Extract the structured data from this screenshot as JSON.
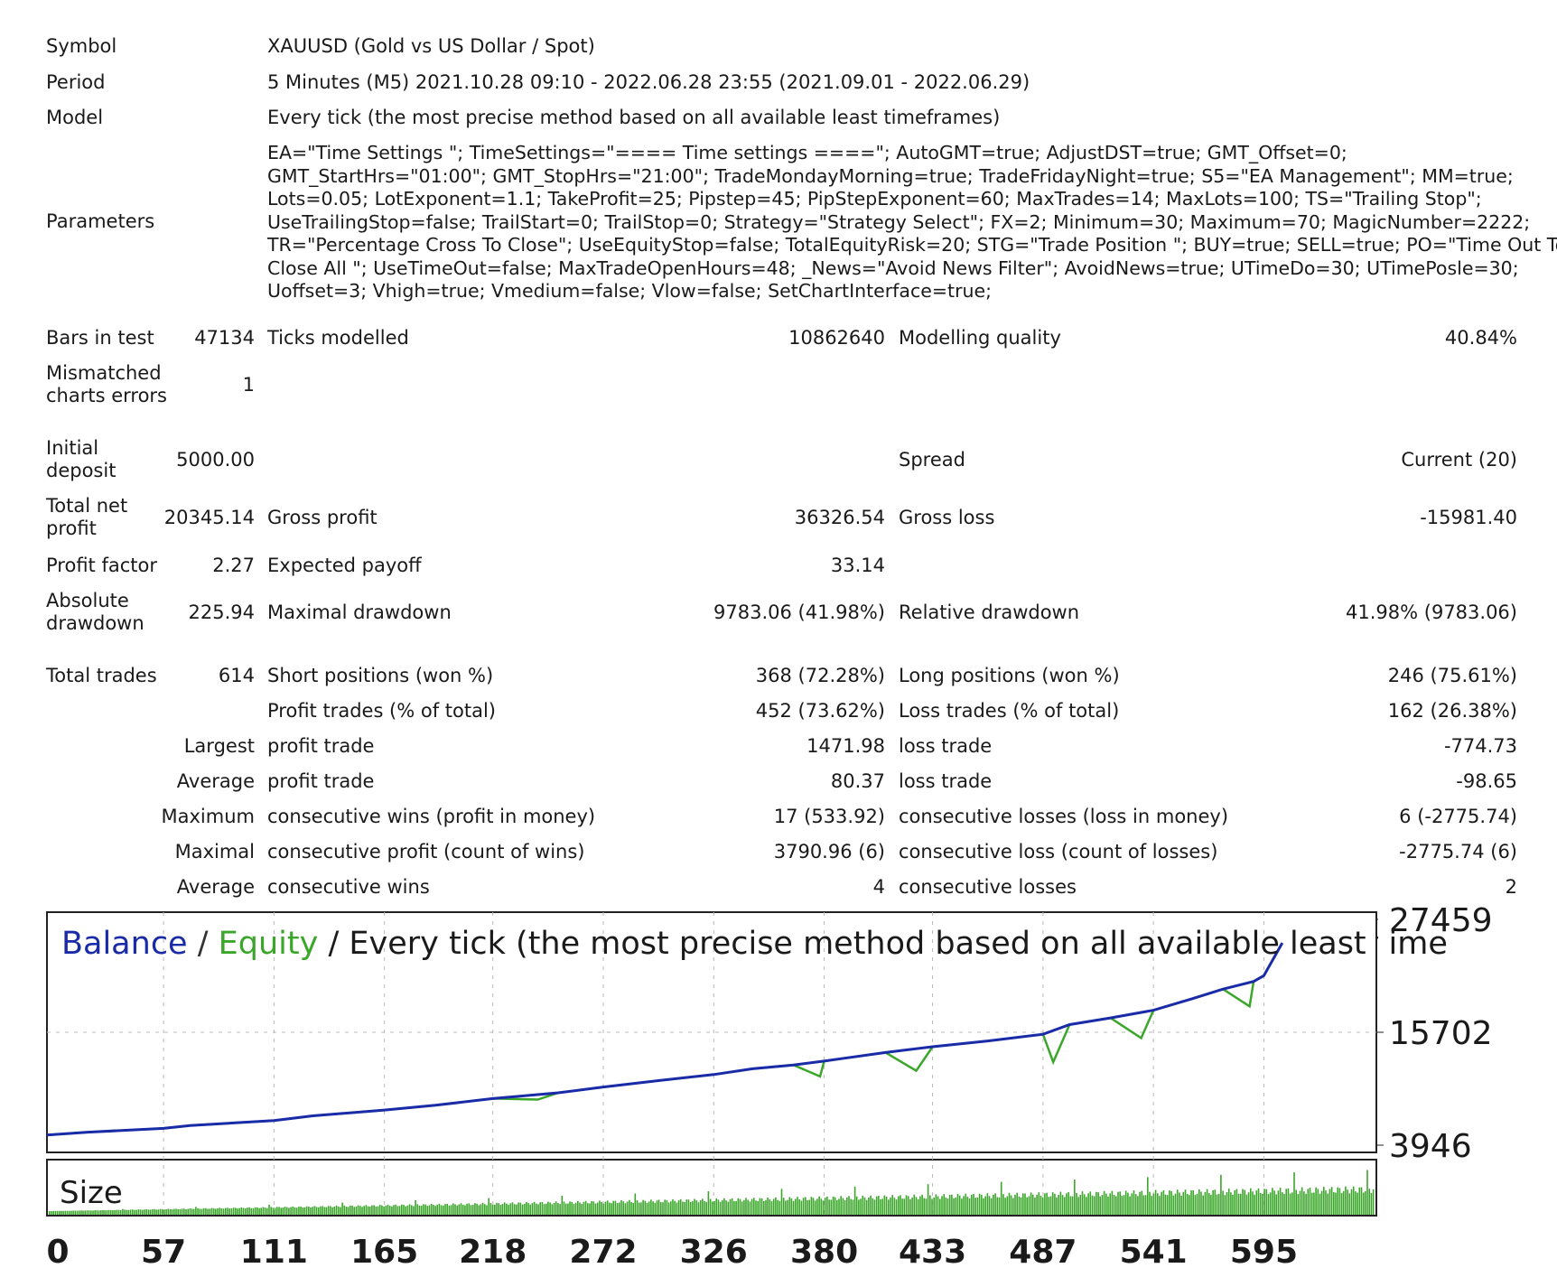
{
  "report": {
    "symbol_label": "Symbol",
    "symbol_value": "XAUUSD (Gold vs US Dollar / Spot)",
    "period_label": "Period",
    "period_value": "5 Minutes (M5) 2021.10.28 09:10 - 2022.06.28 23:55 (2021.09.01 - 2022.06.29)",
    "model_label": "Model",
    "model_value": "Every tick (the most precise method based on all available least timeframes)",
    "parameters_label": "Parameters",
    "parameters_value": "EA=\"Time Settings \"; TimeSettings=\"==== Time settings ====\"; AutoGMT=true; AdjustDST=true; GMT_Offset=0; GMT_StartHrs=\"01:00\"; GMT_StopHrs=\"21:00\"; TradeMondayMorning=true; TradeFridayNight=true; S5=\"EA Management\"; MM=true; Lots=0.05; LotExponent=1.1; TakeProfit=25; Pipstep=45; PipStepExponent=60; MaxTrades=14; MaxLots=100; TS=\"Trailing Stop\"; UseTrailingStop=false; TrailStart=0; TrailStop=0; Strategy=\"Strategy Select\"; FX=2; Minimum=30; Maximum=70; MagicNumber=2222; TR=\"Percentage Cross To Close\"; UseEquityStop=false; TotalEquityRisk=20; STG=\"Trade Position \"; BUY=true; SELL=true; PO=\"Time Out To Close All \"; UseTimeOut=false; MaxTradeOpenHours=48; _News=\"Avoid News Filter\"; AvoidNews=true; UTimeDo=30; UTimePosle=30; Uoffset=3; Vhigh=true; Vmedium=false; Vlow=false; SetChartInterface=true;",
    "bars_label": "Bars in test",
    "bars_value": "47134",
    "ticks_label": "Ticks modelled",
    "ticks_value": "10862640",
    "quality_label": "Modelling quality",
    "quality_value": "40.84%",
    "mismatch_label": "Mismatched charts errors",
    "mismatch_value": "1",
    "deposit_label": "Initial deposit",
    "deposit_value": "5000.00",
    "spread_label": "Spread",
    "spread_value": "Current (20)",
    "net_label": "Total net profit",
    "net_value": "20345.14",
    "gross_profit_label": "Gross profit",
    "gross_profit_value": "36326.54",
    "gross_loss_label": "Gross loss",
    "gross_loss_value": "-15981.40",
    "pf_label": "Profit factor",
    "pf_value": "2.27",
    "payoff_label": "Expected payoff",
    "payoff_value": "33.14",
    "abs_dd_label": "Absolute drawdown",
    "abs_dd_value": "225.94",
    "max_dd_label": "Maximal drawdown",
    "max_dd_value": "9783.06 (41.98%)",
    "rel_dd_label": "Relative drawdown",
    "rel_dd_value": "41.98% (9783.06)",
    "trades_label": "Total trades",
    "trades_value": "614",
    "short_label": "Short positions (won %)",
    "short_value": "368 (72.28%)",
    "long_label": "Long positions (won %)",
    "long_value": "246 (75.61%)",
    "profit_trades_label": "Profit trades (% of total)",
    "profit_trades_value": "452 (73.62%)",
    "loss_trades_label": "Loss trades (% of total)",
    "loss_trades_value": "162 (26.38%)",
    "largest_label": "Largest",
    "largest_profit_label": "profit trade",
    "largest_profit_value": "1471.98",
    "largest_loss_label": "loss trade",
    "largest_loss_value": "-774.73",
    "average_label": "Average",
    "average_profit_label": "profit trade",
    "average_profit_value": "80.37",
    "average_loss_label": "loss trade",
    "average_loss_value": "-98.65",
    "maximum_label": "Maximum",
    "max_cons_wins_label": "consecutive wins (profit in money)",
    "max_cons_wins_value": "17 (533.92)",
    "max_cons_losses_label": "consecutive losses (loss in money)",
    "max_cons_losses_value": "6 (-2775.74)",
    "maximal_label": "Maximal",
    "maximal_profit_label": "consecutive profit (count of wins)",
    "maximal_profit_value": "3790.96 (6)",
    "maximal_loss_label": "consecutive loss (count of losses)",
    "maximal_loss_value": "-2775.74 (6)",
    "avg2_label": "Average",
    "avg_cons_wins_label": "consecutive wins",
    "avg_cons_wins_value": "4",
    "avg_cons_losses_label": "consecutive losses",
    "avg_cons_losses_value": "2"
  },
  "colors": {
    "balance": "#1a2ba8",
    "equity": "#3aa62a",
    "size_bars": "#3aa62a",
    "grid": "#b8b8b8"
  },
  "chart_data": {
    "type": "line",
    "title_balance": "Balance",
    "title_sep1": " / ",
    "title_equity": "Equity",
    "title_rest": " / Every tick (the most precise method based on all available least time",
    "size_label": "Size",
    "xlim": [
      0,
      650
    ],
    "ylim": [
      3946,
      27459
    ],
    "y_ticks": [
      "27459",
      "15702",
      "3946"
    ],
    "x_ticks": [
      "0",
      "57",
      "111",
      "165",
      "218",
      "272",
      "326",
      "380",
      "433",
      "487",
      "541",
      "595"
    ],
    "x_tick_values": [
      0,
      57,
      111,
      165,
      218,
      272,
      326,
      380,
      433,
      487,
      541,
      595
    ],
    "series": [
      {
        "name": "Balance",
        "x": [
          0,
          20,
          57,
          70,
          111,
          130,
          165,
          190,
          218,
          250,
          272,
          300,
          326,
          345,
          365,
          380,
          390,
          410,
          433,
          460,
          487,
          500,
          520,
          541,
          560,
          575,
          590,
          595,
          604
        ],
        "y": [
          5000,
          5300,
          5700,
          6000,
          6500,
          7000,
          7600,
          8100,
          8800,
          9400,
          10000,
          10700,
          11300,
          11900,
          12300,
          12700,
          13000,
          13600,
          14200,
          14800,
          15500,
          16500,
          17200,
          18000,
          19200,
          20200,
          21000,
          21600,
          25000
        ]
      },
      {
        "name": "Equity",
        "x": [
          0,
          20,
          57,
          70,
          111,
          130,
          165,
          190,
          218,
          240,
          250,
          272,
          300,
          326,
          345,
          365,
          378,
          380,
          390,
          410,
          425,
          433,
          460,
          487,
          492,
          500,
          520,
          535,
          541,
          560,
          575,
          588,
          590,
          595,
          604
        ],
        "y": [
          5000,
          5300,
          5700,
          6000,
          6500,
          7000,
          7600,
          8100,
          8800,
          8700,
          9400,
          10000,
          10700,
          11300,
          11900,
          12300,
          11100,
          12700,
          13000,
          13600,
          11700,
          14200,
          14800,
          15500,
          12600,
          16500,
          17200,
          15100,
          18000,
          19200,
          20200,
          18400,
          21000,
          21600,
          25000
        ]
      }
    ],
    "size_values": [
      1,
      1,
      1,
      1,
      1,
      1,
      1,
      1,
      1,
      1,
      1,
      1,
      1,
      1,
      1,
      1,
      1,
      1,
      1,
      1,
      1,
      1,
      1,
      1,
      1,
      1,
      1,
      1,
      1,
      1,
      1,
      1,
      1,
      1,
      1,
      1,
      1,
      1,
      1,
      1,
      1,
      1,
      1,
      1,
      1,
      1,
      1,
      1,
      1,
      1,
      1,
      1,
      1,
      1,
      1,
      1,
      1,
      1,
      1,
      1,
      1,
      1,
      1,
      1,
      1,
      1,
      1,
      1,
      1,
      1,
      1,
      1,
      1,
      1,
      1,
      1,
      1,
      1,
      1,
      1,
      1,
      1,
      1,
      1,
      1,
      1,
      1,
      1,
      1,
      1,
      1,
      1,
      1,
      1,
      1,
      1,
      1,
      1,
      1,
      1,
      1,
      1,
      1,
      1,
      1,
      1,
      1,
      1,
      1,
      1,
      1,
      1,
      1,
      1,
      1,
      1,
      1,
      1,
      1,
      1,
      1,
      1,
      1,
      1,
      1,
      1,
      1,
      1,
      1,
      1,
      1,
      1,
      1,
      1,
      1,
      1,
      1,
      1,
      1,
      1,
      1,
      1,
      1,
      1,
      1,
      1,
      1,
      1,
      1,
      1,
      1,
      1,
      1,
      1,
      1,
      1,
      1,
      1,
      1,
      1,
      1,
      1,
      1,
      1,
      1,
      1,
      1,
      1,
      1,
      1,
      1,
      1,
      1,
      1,
      1,
      1,
      1,
      1,
      1,
      1,
      1,
      1,
      1,
      1,
      1,
      1,
      1,
      1,
      1,
      1,
      1,
      1,
      1,
      1,
      1,
      1,
      1,
      1,
      1,
      1,
      1,
      1,
      1,
      1,
      1,
      1,
      1,
      1,
      1,
      1,
      1,
      1,
      1,
      1,
      1,
      1,
      1,
      1,
      1,
      1,
      1,
      1,
      1,
      1,
      1,
      1,
      1,
      1,
      1,
      1,
      1,
      1,
      1,
      1,
      1,
      1,
      1,
      1,
      1,
      1,
      1,
      1,
      1,
      1,
      1,
      1,
      1,
      1,
      1,
      1,
      1,
      1,
      1,
      1,
      1,
      1,
      1,
      1,
      1,
      1,
      1,
      1,
      1,
      1,
      1,
      1,
      1,
      1,
      1,
      1,
      1,
      1,
      1,
      1,
      1,
      1,
      1,
      1,
      1,
      1,
      1,
      1,
      1,
      1,
      1,
      1,
      1,
      1,
      1,
      1,
      1,
      1,
      1,
      1,
      1,
      1,
      1,
      1,
      1,
      1,
      1,
      1,
      1,
      1,
      1,
      1,
      1,
      1,
      1,
      1,
      1,
      1,
      1,
      1,
      1,
      1,
      1,
      1,
      1,
      1,
      1,
      1,
      1,
      1,
      1,
      1,
      1,
      1,
      1,
      1,
      1,
      1,
      1,
      1,
      1,
      1,
      1,
      1,
      1,
      1,
      1,
      1,
      1,
      1,
      1,
      1,
      1,
      1,
      1,
      1,
      1,
      1,
      1,
      1,
      1,
      1,
      1,
      1,
      1,
      1,
      1,
      1,
      1,
      1,
      1,
      1,
      1,
      1,
      1,
      1,
      1,
      1,
      1,
      1,
      1,
      1,
      1,
      1,
      1,
      1,
      1,
      1,
      1,
      1,
      1,
      1,
      1,
      1,
      1,
      1,
      1,
      1,
      1,
      1,
      1,
      1,
      1,
      1,
      1,
      1,
      1,
      1,
      1,
      1,
      1,
      1,
      1,
      1,
      1,
      1,
      1,
      1,
      1,
      1,
      1,
      1,
      1,
      1,
      1,
      1,
      1,
      1,
      1,
      1,
      1,
      1,
      1,
      1,
      1,
      1,
      1,
      1,
      1,
      1,
      1,
      1,
      1,
      1,
      1,
      1,
      1,
      1,
      1,
      1,
      1,
      1,
      1,
      1,
      1,
      1,
      1,
      1,
      1,
      1,
      1,
      1,
      1,
      1,
      1,
      1,
      1,
      1,
      1,
      1,
      1,
      1,
      1,
      1,
      1,
      1,
      1,
      1,
      1,
      1,
      1,
      1,
      1,
      1,
      1,
      1,
      1,
      1,
      1,
      1,
      1,
      1,
      1,
      1,
      1,
      1,
      1,
      1,
      1,
      1,
      1,
      1,
      1,
      1,
      1,
      1,
      1,
      1,
      1,
      1,
      1,
      1,
      1,
      1,
      1,
      1,
      1,
      1,
      1,
      1,
      1,
      1,
      1,
      1,
      1,
      1,
      1,
      1,
      1,
      1,
      1,
      1,
      1,
      1,
      1,
      1,
      1,
      1,
      1,
      1,
      1,
      1,
      1,
      1,
      1,
      1,
      1,
      1,
      1,
      1,
      1,
      1,
      1,
      1,
      1,
      1,
      1,
      1,
      1,
      1,
      1,
      1,
      1,
      1,
      1,
      1,
      1,
      1,
      1,
      1,
      1,
      1,
      1,
      1,
      1,
      1,
      1,
      1,
      1,
      1,
      1,
      1,
      1,
      1,
      1,
      1,
      1,
      1,
      1,
      1,
      1,
      1,
      1,
      1,
      1,
      1,
      1,
      1,
      1,
      1,
      1,
      1,
      1,
      1,
      1,
      1,
      1,
      1,
      1,
      1,
      1,
      1,
      1,
      1,
      1,
      1,
      1,
      1,
      1,
      1,
      1,
      1,
      1,
      1,
      1,
      1,
      1,
      1,
      1,
      1,
      1,
      1,
      1,
      1,
      1,
      1,
      1,
      1,
      1,
      1,
      1,
      1,
      1,
      1,
      1,
      1,
      1,
      1,
      1,
      1,
      1,
      1,
      1,
      1,
      1,
      1,
      1,
      1,
      1,
      1,
      1,
      1,
      1,
      1,
      1,
      1,
      1,
      1,
      1,
      1,
      1,
      1,
      1,
      1,
      1,
      1
    ]
  }
}
